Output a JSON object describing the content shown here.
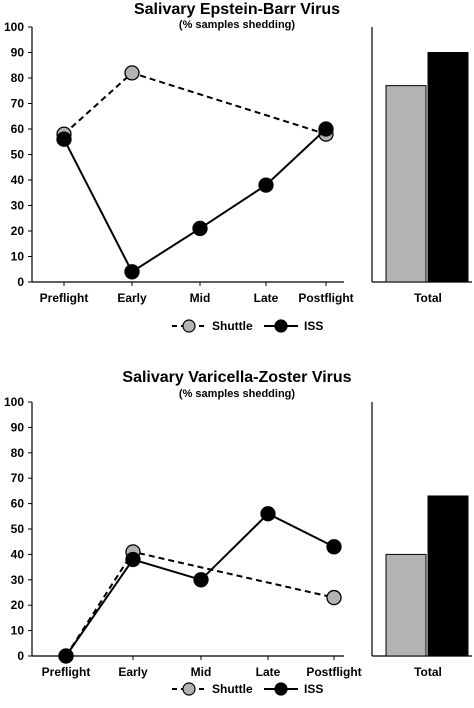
{
  "chart_data": [
    {
      "type": "line",
      "title": "Salivary Epstein-Barr Virus",
      "subtitle": "(% samples shedding)",
      "categories": [
        "Preflight",
        "Early",
        "Mid",
        "Late",
        "Postflight"
      ],
      "series": [
        {
          "name": "Shuttle",
          "values": [
            58,
            82,
            null,
            null,
            58
          ],
          "color": "#b3b3b3",
          "line": "dashed"
        },
        {
          "name": "ISS",
          "values": [
            56,
            4,
            21,
            38,
            60
          ],
          "color": "#000000",
          "line": "solid"
        }
      ],
      "totals": {
        "categories": [
          "Total"
        ],
        "values": [
          {
            "series": "Shuttle",
            "value": 77
          },
          {
            "series": "ISS",
            "value": 90
          }
        ]
      },
      "yticks": [
        "0",
        "10",
        "20",
        "30",
        "40",
        "50",
        "60",
        "70",
        "80",
        "90",
        "100"
      ],
      "ylim": [
        0,
        100
      ],
      "legend": "bottom"
    },
    {
      "type": "line",
      "title": "Salivary Varicella-Zoster Virus",
      "subtitle": "(% samples shedding)",
      "categories": [
        "Preflight",
        "Early",
        "Mid",
        "Late",
        "Postflight"
      ],
      "series": [
        {
          "name": "Shuttle",
          "values": [
            0,
            41,
            null,
            null,
            23
          ],
          "color": "#b3b3b3",
          "line": "dashed"
        },
        {
          "name": "ISS",
          "values": [
            0,
            38,
            30,
            56,
            43
          ],
          "color": "#000000",
          "line": "solid"
        }
      ],
      "totals": {
        "categories": [
          "Total"
        ],
        "values": [
          {
            "series": "Shuttle",
            "value": 40
          },
          {
            "series": "ISS",
            "value": 63
          }
        ]
      },
      "yticks": [
        "0",
        "10",
        "20",
        "30",
        "40",
        "50",
        "60",
        "70",
        "80",
        "90",
        "100"
      ],
      "ylim": [
        0,
        100
      ],
      "legend": "bottom"
    }
  ]
}
